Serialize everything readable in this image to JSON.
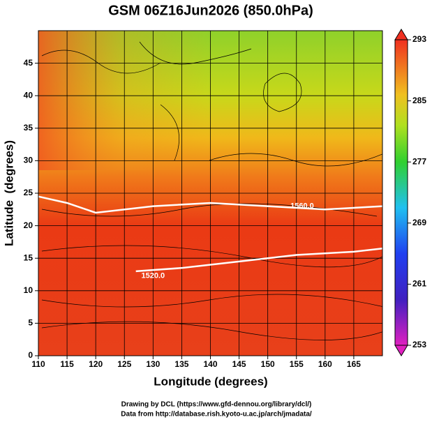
{
  "chart_data": {
    "type": "map",
    "title": "GSM 06Z16Jun2026 (850.0hPa)",
    "x_label": "Longitude (degrees)",
    "y_label": "Latitude  (degrees)",
    "xlim": [
      110,
      170
    ],
    "ylim": [
      0,
      50
    ],
    "xticks": [
      110,
      115,
      120,
      125,
      130,
      135,
      140,
      145,
      150,
      155,
      160,
      165
    ],
    "yticks": [
      0,
      5,
      10,
      15,
      20,
      25,
      30,
      35,
      40,
      45
    ],
    "grid": true,
    "colorbar": {
      "lim": [
        253,
        293
      ],
      "ticks": [
        253,
        261,
        269,
        277,
        285,
        293
      ]
    },
    "contours": [
      {
        "label": "1520.0",
        "label_x": 130,
        "label_y": 12.3,
        "x": [
          127,
          135,
          145,
          155,
          165,
          170
        ],
        "y": [
          13,
          13.5,
          14.5,
          15.5,
          16,
          16.5
        ]
      },
      {
        "label": "1560.0",
        "label_x": 156,
        "label_y": 23,
        "x": [
          110,
          115,
          120,
          130,
          140,
          150,
          160,
          170
        ],
        "y": [
          24.5,
          23.5,
          22,
          23,
          23.5,
          23,
          22.5,
          23
        ]
      }
    ],
    "credits": [
      "Drawing by DCL (https://www.gfd-dennou.org/library/dcl/)",
      "Data from http://database.rish.kyoto-u.ac.jp/arch/jmadata/"
    ]
  }
}
